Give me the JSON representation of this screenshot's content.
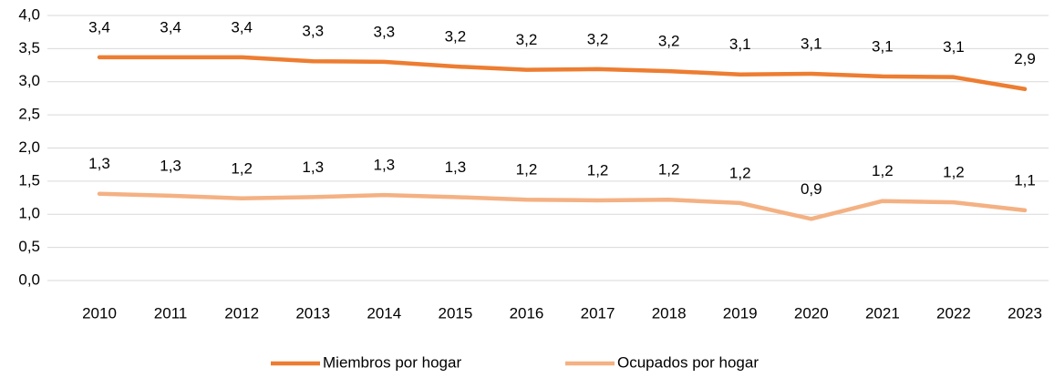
{
  "chart_data": {
    "type": "line",
    "categories": [
      "2010",
      "2011",
      "2012",
      "2013",
      "2014",
      "2015",
      "2016",
      "2017",
      "2018",
      "2019",
      "2020",
      "2021",
      "2022",
      "2023"
    ],
    "series": [
      {
        "name": "Miembros por hogar",
        "color": "#ed7d31",
        "values": [
          3.37,
          3.37,
          3.37,
          3.31,
          3.3,
          3.23,
          3.18,
          3.19,
          3.16,
          3.11,
          3.12,
          3.08,
          3.07,
          2.89
        ],
        "value_labels": [
          "3,4",
          "3,4",
          "3,4",
          "3,3",
          "3,3",
          "3,2",
          "3,2",
          "3,2",
          "3,2",
          "3,1",
          "3,1",
          "3,1",
          "3,1",
          "2,9"
        ]
      },
      {
        "name": "Ocupados por hogar",
        "color": "#f4b183",
        "values": [
          1.31,
          1.28,
          1.24,
          1.26,
          1.29,
          1.26,
          1.22,
          1.21,
          1.22,
          1.17,
          0.93,
          1.2,
          1.18,
          1.06
        ],
        "value_labels": [
          "1,3",
          "1,3",
          "1,2",
          "1,3",
          "1,3",
          "1,3",
          "1,2",
          "1,2",
          "1,2",
          "1,2",
          "0,9",
          "1,2",
          "1,2",
          "1,1"
        ]
      }
    ],
    "ylim": [
      0,
      4
    ],
    "yticks": [
      {
        "value": 0,
        "label": "0,0"
      },
      {
        "value": 0.5,
        "label": "0,5"
      },
      {
        "value": 1,
        "label": "1,0"
      },
      {
        "value": 1.5,
        "label": "1,5"
      },
      {
        "value": 2,
        "label": "2,0"
      },
      {
        "value": 2.5,
        "label": "2,5"
      },
      {
        "value": 3,
        "label": "3,0"
      },
      {
        "value": 3.5,
        "label": "3,5"
      },
      {
        "value": 4,
        "label": "4,0"
      }
    ],
    "grid": true,
    "legend": "bottom"
  }
}
